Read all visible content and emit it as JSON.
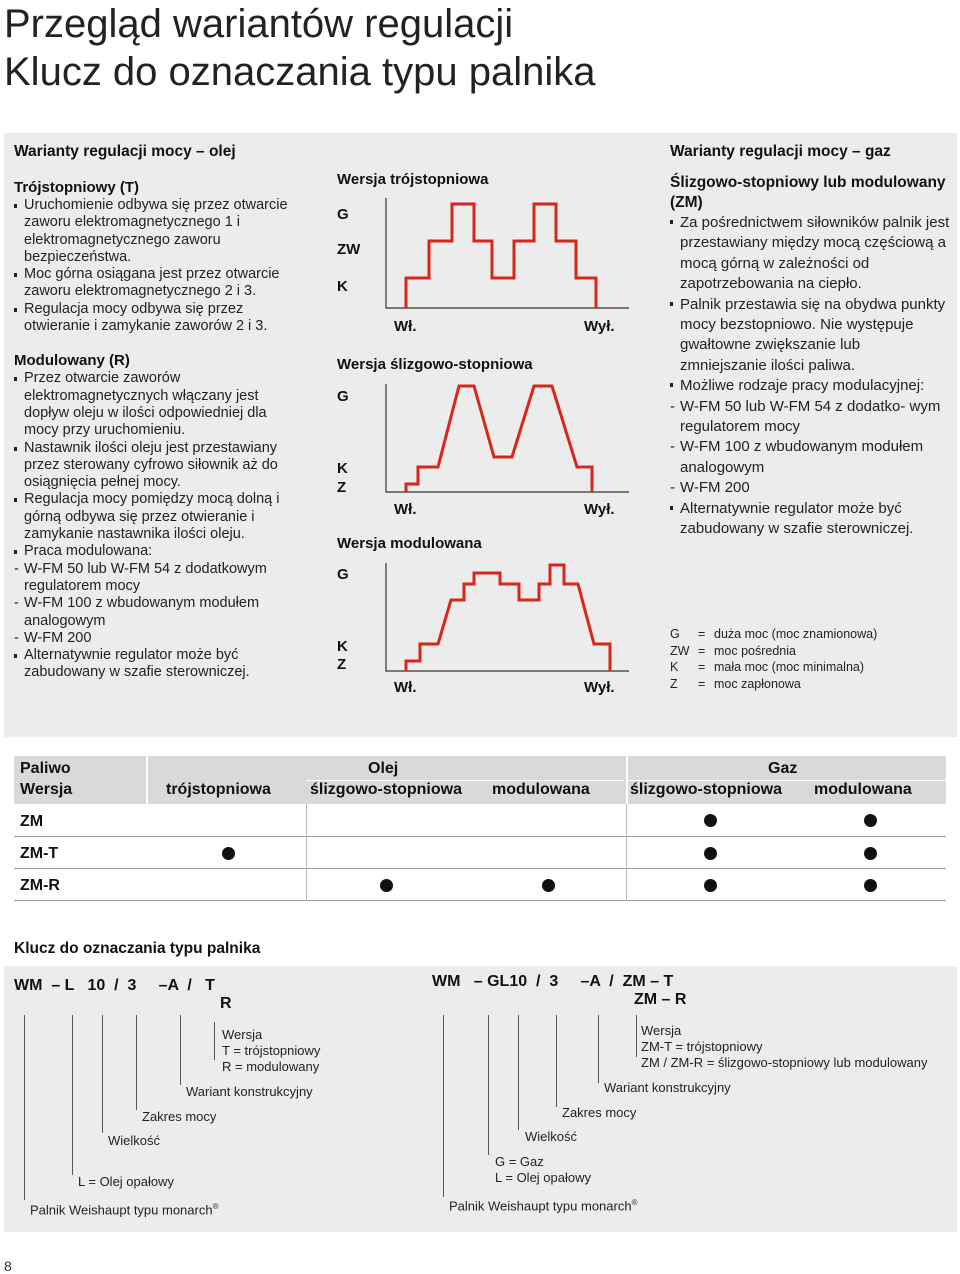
{
  "header": {
    "title_line1": "Przegląd wariantów regulacji",
    "title_line2": "Klucz do oznaczania typu palnika"
  },
  "oil": {
    "heading": "Warianty regulacji mocy – olej",
    "three_stage": {
      "title": "Trójstopniowy (T)",
      "bullets": [
        "Uruchomienie odbywa się przez otwarcie zaworu elektromagnetycznego 1 i elektromagnetycznego zaworu bezpieczeństwa.",
        "Moc górna osiągana jest przez otwarcie zaworu elektromagnetycznego 2 i 3.",
        "Regulacja mocy odbywa się przez otwieranie i zamykanie zaworów 2 i 3."
      ]
    },
    "modulating": {
      "title": "Modulowany (R)",
      "bullets": [
        "Przez otwarcie zaworów elektromagnetycznych włączany jest dopływ oleju w ilości odpowiedniej dla mocy przy uruchomieniu.",
        "Nastawnik ilości oleju jest przestawiany przez sterowany cyfrowo siłownik aż do osiągnięcia pełnej mocy.",
        "Regulacja mocy pomiędzy mocą dolną i górną odbywa się przez otwieranie i zamykanie nastawnika ilości oleju.",
        "Praca modulowana:"
      ],
      "sub_items": [
        "W-FM 50 lub W-FM 54 z dodatkowym regulatorem mocy",
        "W-FM 100 z wbudowanym modułem analogowym",
        "W-FM 200"
      ],
      "last_bullet": "Alternatywnie regulator może być zabudowany w szafie sterowniczej."
    }
  },
  "charts": {
    "three_stage": {
      "title": "Wersja trójstopniowa",
      "levels": [
        "G",
        "ZW",
        "K"
      ],
      "on": "Wł.",
      "off": "Wył."
    },
    "sliding": {
      "title": "Wersja ślizgowo-stopniowa",
      "levels": [
        "G",
        "K",
        "Z"
      ],
      "on": "Wł.",
      "off": "Wył."
    },
    "modulated": {
      "title": "Wersja modulowana",
      "levels": [
        "G",
        "K",
        "Z"
      ],
      "on": "Wł.",
      "off": "Wył."
    },
    "line_color": "#d9261c"
  },
  "gas": {
    "heading": "Warianty regulacji mocy – gaz",
    "title": "Ślizgowo-stopniowy lub modulowany (ZM)",
    "bullets": [
      "Za pośrednictwem siłowników palnik jest przestawiany między mocą częściową a mocą górną w zależności od zapotrzebowania na ciepło.",
      "Palnik przestawia się na obydwa punkty mocy bezstopniowo. Nie występuje gwałtowne zwiększanie lub zmniejszanie ilości paliwa.",
      "Możliwe rodzaje pracy modulacyjnej:"
    ],
    "sub_items": [
      "W-FM 50 lub W-FM 54 z dodatko- wym regulatorem mocy",
      "W-FM 100 z wbudowanym modułem analogowym",
      "W-FM 200"
    ],
    "last_bullet": "Alternatywnie regulator może być zabudowany w szafie sterowniczej.",
    "legend": [
      {
        "k": "G",
        "eq": "=",
        "v": "duża moc (moc znamionowa)"
      },
      {
        "k": "ZW",
        "eq": "=",
        "v": "moc pośrednia"
      },
      {
        "k": "K",
        "eq": "=",
        "v": "mała moc (moc minimalna)"
      },
      {
        "k": "Z",
        "eq": "=",
        "v": "moc zapłonowa"
      }
    ]
  },
  "table": {
    "h_fuel": "Paliwo",
    "h_version": "Wersja",
    "oil": "Olej",
    "gas": "Gaz",
    "columns": [
      "trójstopniowa",
      "ślizgowo-stopniowa",
      "modulowana",
      "ślizgowo-stopniowa",
      "modulowana"
    ],
    "rows": [
      {
        "label": "ZM",
        "dots": [
          false,
          false,
          false,
          true,
          true
        ]
      },
      {
        "label": "ZM-T",
        "dots": [
          true,
          false,
          false,
          true,
          true
        ]
      },
      {
        "label": "ZM-R",
        "dots": [
          false,
          true,
          true,
          true,
          true
        ]
      }
    ]
  },
  "key": {
    "heading": "Klucz do oznaczania typu palnika",
    "left": {
      "code_line1": "WM  – L   10  /  3     –A  /   T",
      "code_line2": "R",
      "version_title": "Wersja",
      "version_t": "T = trójstopniowy",
      "version_r": "R = modulowany",
      "variant": "Wariant konstrukcyjny",
      "range": "Zakres mocy",
      "size": "Wielkość",
      "fuel": "L = Olej opałowy",
      "burner": "Palnik Weishaupt typu monarch",
      "reg": "®"
    },
    "right": {
      "code_line1": "WM   – GL10  /  3     –A  /  ZM – T",
      "code_line2": "ZM – R",
      "version_title": "Wersja",
      "version_t": "ZM-T = trójstopniowy",
      "version_r": "ZM / ZM-R = ślizgowo-stopniowy lub modulowany",
      "variant": "Wariant konstrukcyjny",
      "range": "Zakres mocy",
      "size": "Wielkość",
      "fuel_g": "G = Gaz",
      "fuel_l": "L = Olej opałowy",
      "burner": "Palnik Weishaupt typu monarch",
      "reg": "®"
    }
  },
  "footer": {
    "page_number": "8"
  }
}
